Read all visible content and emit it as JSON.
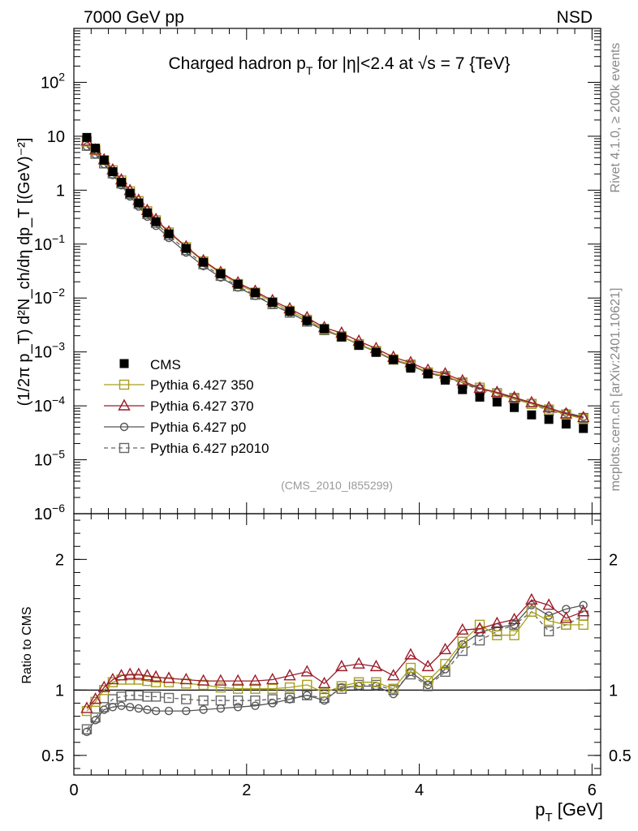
{
  "header": {
    "left": "7000 GeV pp",
    "right": "NSD",
    "title_parts": [
      "Charged hadron p",
      "T",
      " for |η|<2.4 at √s = 7 {TeV}"
    ]
  },
  "side_labels": {
    "upper": "Rivet 4.1.0, ≥ 200k events",
    "lower": "mcplots.cern.ch [arXiv:2401.10621]"
  },
  "analysis_id": "(CMS_2010_I855299)",
  "colors": {
    "data": "#000000",
    "p350": "#a8a020",
    "p370": "#9b1c2a",
    "p0": "#555555",
    "p2010": "#666666"
  },
  "chart_data": {
    "type": "scatter",
    "x": [
      0.15,
      0.25,
      0.35,
      0.45,
      0.55,
      0.65,
      0.75,
      0.85,
      0.95,
      1.1,
      1.3,
      1.5,
      1.7,
      1.9,
      2.1,
      2.3,
      2.5,
      2.7,
      2.9,
      3.1,
      3.3,
      3.5,
      3.7,
      3.9,
      4.1,
      4.3,
      4.5,
      4.7,
      4.9,
      5.1,
      5.3,
      5.5,
      5.7,
      5.9
    ],
    "cms_values": [
      9.5,
      6.0,
      3.6,
      2.2,
      1.4,
      0.88,
      0.58,
      0.38,
      0.26,
      0.155,
      0.083,
      0.046,
      0.028,
      0.018,
      0.0125,
      0.0083,
      0.0057,
      0.0038,
      0.0027,
      0.0019,
      0.00132,
      0.00098,
      0.00072,
      0.0005,
      0.00039,
      0.0003,
      0.0002,
      0.000145,
      0.000118,
      9.3e-05,
      6.8e-05,
      5.6e-05,
      4.6e-05,
      3.8e-05
    ],
    "series": [
      {
        "name": "Pythia 6.427 350",
        "key": "p350",
        "marker": "square",
        "dashed": false,
        "ratio": [
          0.84,
          0.91,
          1.0,
          1.06,
          1.08,
          1.08,
          1.08,
          1.07,
          1.06,
          1.06,
          1.05,
          1.04,
          1.02,
          1.01,
          1.01,
          1.01,
          1.02,
          1.04,
          0.98,
          1.03,
          1.06,
          1.06,
          1.01,
          1.17,
          1.07,
          1.2,
          1.37,
          1.5,
          1.42,
          1.42,
          1.6,
          1.53,
          1.5,
          1.5
        ]
      },
      {
        "name": "Pythia 6.427 370",
        "key": "p370",
        "marker": "triangle",
        "dashed": false,
        "ratio": [
          0.86,
          0.93,
          1.02,
          1.08,
          1.11,
          1.12,
          1.12,
          1.11,
          1.1,
          1.09,
          1.08,
          1.07,
          1.07,
          1.07,
          1.07,
          1.08,
          1.11,
          1.14,
          1.05,
          1.18,
          1.2,
          1.18,
          1.11,
          1.27,
          1.18,
          1.31,
          1.46,
          1.47,
          1.51,
          1.54,
          1.69,
          1.65,
          1.55,
          1.6
        ]
      },
      {
        "name": "Pythia 6.427 p0",
        "key": "p0",
        "marker": "circle",
        "dashed": false,
        "ratio": [
          0.68,
          0.77,
          0.85,
          0.87,
          0.88,
          0.87,
          0.86,
          0.85,
          0.84,
          0.84,
          0.84,
          0.85,
          0.86,
          0.87,
          0.88,
          0.9,
          0.93,
          0.96,
          0.92,
          1.02,
          1.03,
          1.03,
          0.97,
          1.14,
          1.04,
          1.16,
          1.35,
          1.44,
          1.48,
          1.5,
          1.65,
          1.57,
          1.62,
          1.65
        ]
      },
      {
        "name": "Pythia 6.427 p2010",
        "key": "p2010",
        "marker": "square",
        "dashed": true,
        "ratio": [
          0.7,
          0.79,
          0.87,
          0.93,
          0.95,
          0.96,
          0.96,
          0.95,
          0.95,
          0.94,
          0.93,
          0.92,
          0.92,
          0.92,
          0.92,
          0.93,
          0.94,
          0.96,
          0.94,
          1.01,
          1.04,
          1.04,
          1.0,
          1.12,
          1.03,
          1.14,
          1.3,
          1.38,
          1.45,
          1.5,
          1.6,
          1.45,
          1.5,
          1.57
        ]
      }
    ],
    "main_ylim": [
      1e-06,
      1000
    ],
    "ratio_ylim": [
      0.35,
      2.35
    ],
    "xlim": [
      0,
      6.1
    ],
    "x_ticks": [
      "0",
      "2",
      "4",
      "6"
    ],
    "y_ticks_main": [
      "10^-6",
      "10^-5",
      "10^-4",
      "10^-3",
      "10^-2",
      "10^-1",
      "1",
      "10",
      "10^2"
    ],
    "y_ticks_ratio": [
      "0.5",
      "1",
      "2"
    ],
    "ylabel_main": "(1/2π p_T) d²N_ch/dη dp_T [(GeV)⁻²]",
    "ylabel_ratio": "Ratio to CMS",
    "xlabel": "p_T [GeV]",
    "legend": [
      "CMS",
      "Pythia 6.427 350",
      "Pythia 6.427 370",
      "Pythia 6.427 p0",
      "Pythia 6.427 p2010"
    ]
  }
}
